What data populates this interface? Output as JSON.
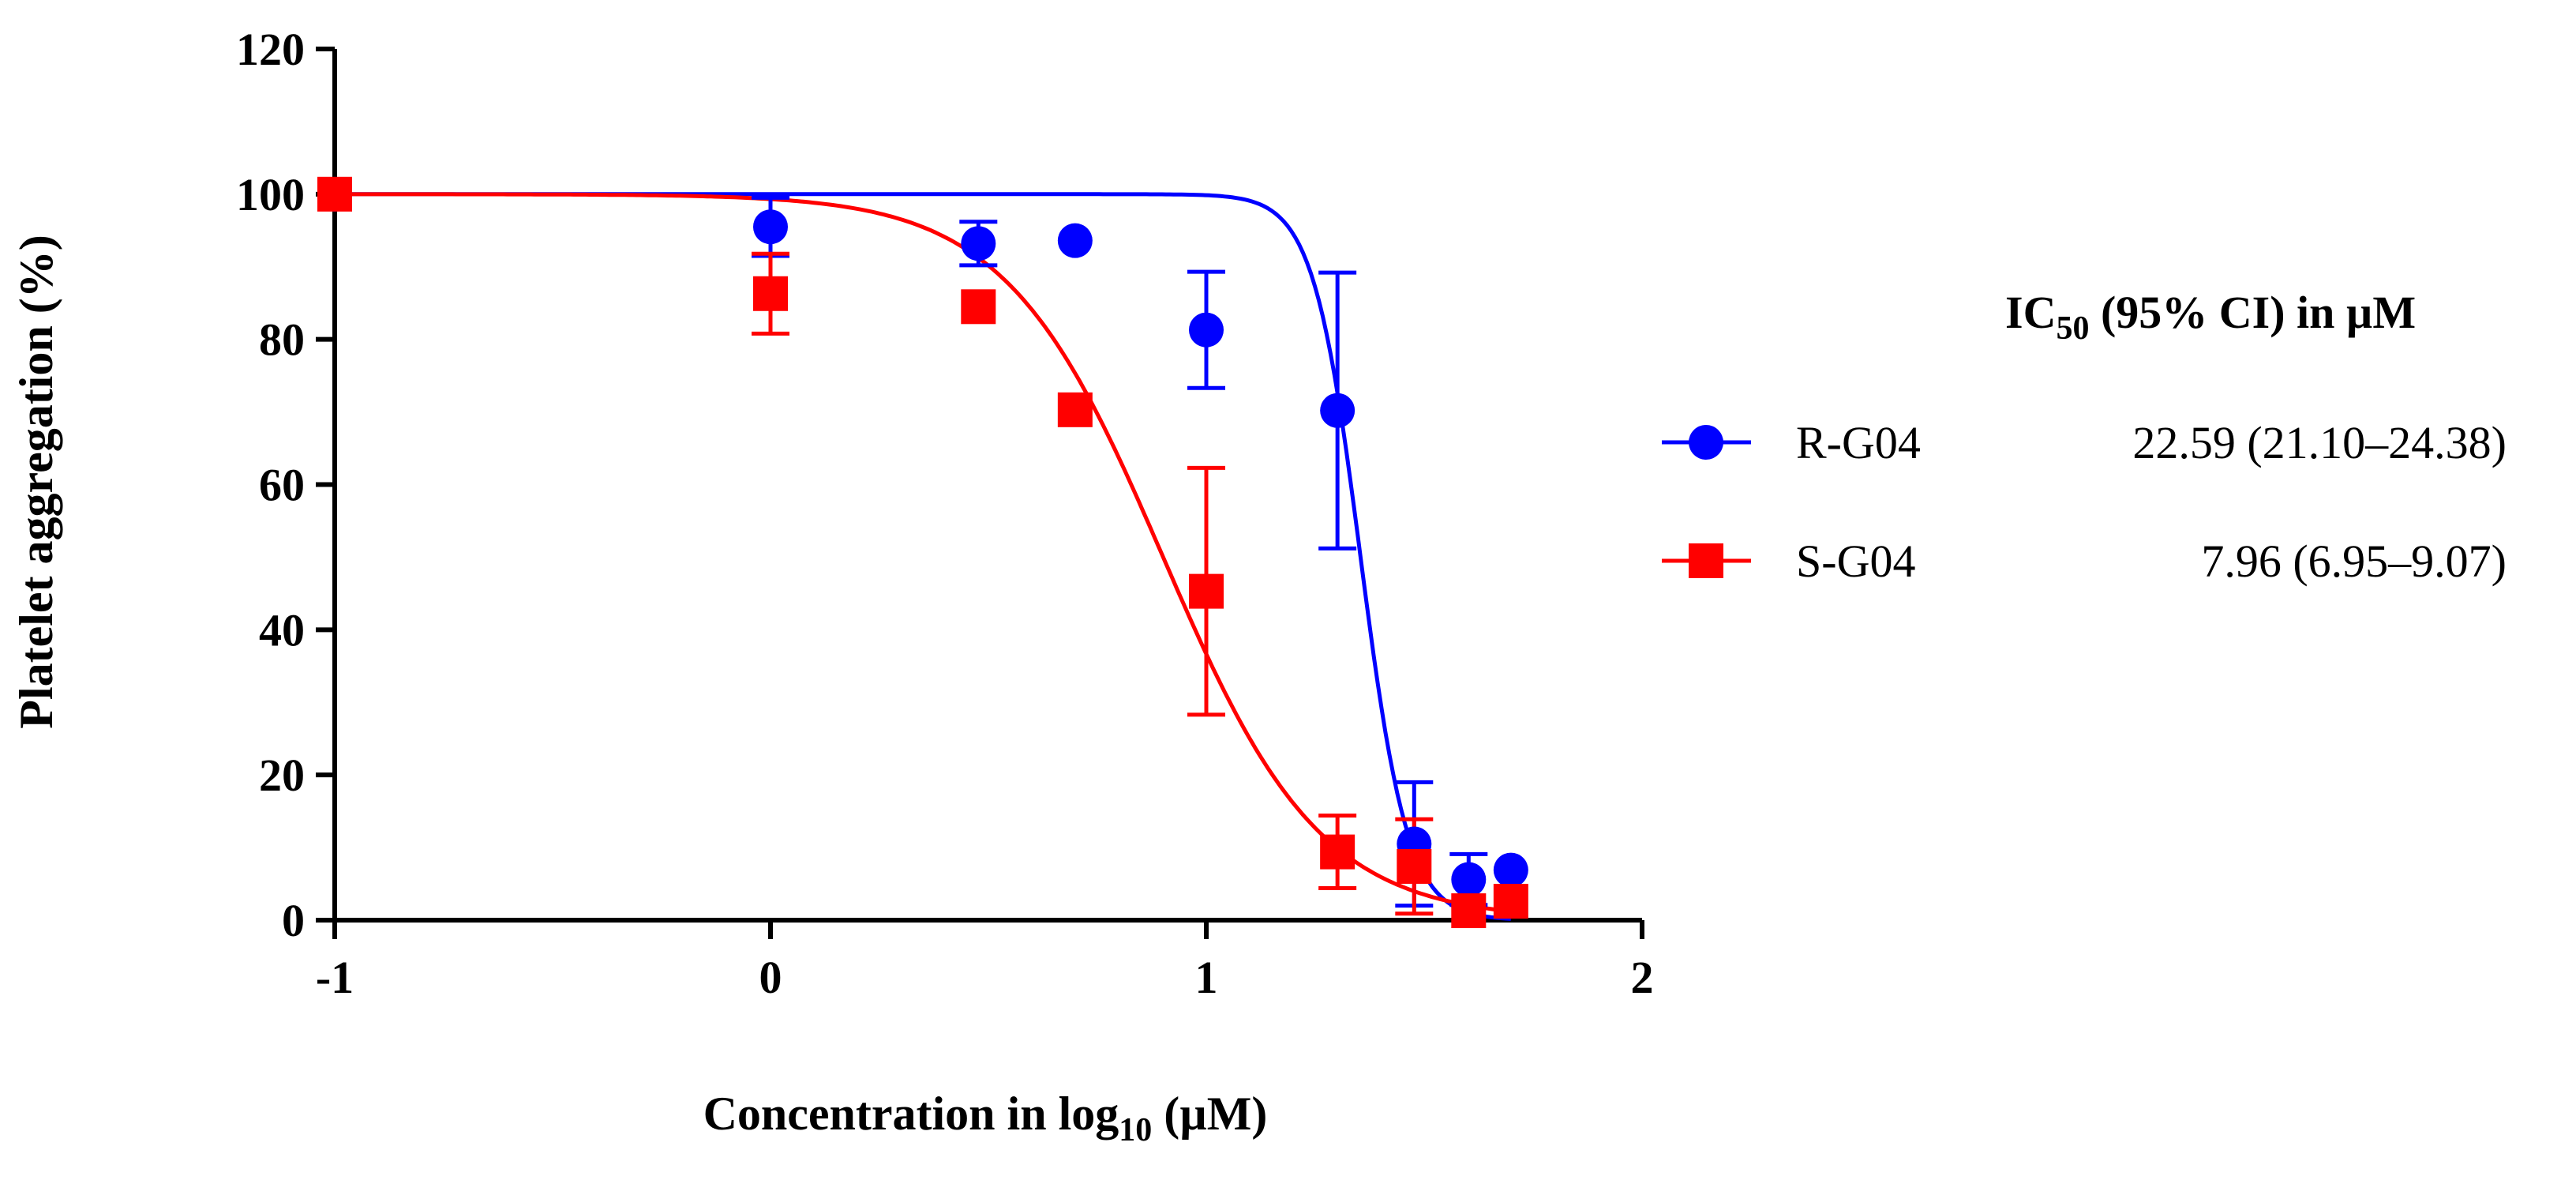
{
  "chart_data": {
    "type": "scatter",
    "title": "",
    "xlabel": {
      "main": "Concentration in log",
      "sub": "10",
      "unit": " (µM)"
    },
    "ylabel": "Platelet aggregation (%)",
    "xlim": [
      -1,
      2
    ],
    "ylim": [
      0,
      120
    ],
    "xticks": [
      -1,
      0,
      1,
      2
    ],
    "yticks": [
      0,
      20,
      40,
      60,
      80,
      100,
      120
    ],
    "legend": {
      "title_main": "IC",
      "title_sub": "50",
      "title_rest": " (95% CI) in µM",
      "position": "right"
    },
    "series": [
      {
        "name": "R-G04",
        "ic50_text": "22.59 (21.10–24.38)",
        "color": "#0000ff",
        "marker": "circle",
        "ic50_log": 1.354,
        "hill": 8.0,
        "x": [
          -1.0,
          0.0,
          0.477,
          0.699,
          1.0,
          1.301,
          1.477,
          1.602,
          1.699
        ],
        "y": [
          100,
          95.5,
          93.2,
          93.6,
          81.3,
          70.2,
          10.5,
          5.6,
          6.9
        ],
        "err": [
          0,
          4.0,
          3.0,
          0,
          8.0,
          19.0,
          8.5,
          3.5,
          0
        ]
      },
      {
        "name": "S-G04",
        "ic50_text": "7.96 (6.95–9.07)",
        "color": "#ff0000",
        "marker": "square",
        "ic50_log": 0.901,
        "hill": 2.4,
        "x": [
          -1.0,
          0.0,
          0.477,
          0.699,
          1.0,
          1.301,
          1.477,
          1.602,
          1.699
        ],
        "y": [
          100,
          86.3,
          84.5,
          70.3,
          45.3,
          9.4,
          7.4,
          1.3,
          2.6
        ],
        "err": [
          0,
          5.5,
          0,
          0,
          17.0,
          5.0,
          6.5,
          0,
          0
        ]
      }
    ]
  }
}
